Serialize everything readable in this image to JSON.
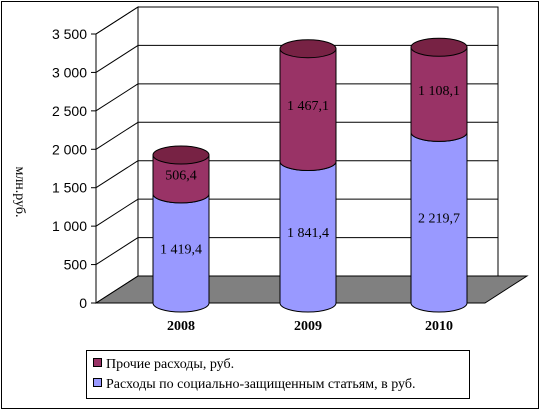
{
  "chart_data": {
    "type": "bar",
    "variant": "stacked-3d-cylinder",
    "categories": [
      "2008",
      "2009",
      "2010"
    ],
    "series": [
      {
        "name": "Расходы по социально-защищенным статьям, в руб.",
        "values": [
          1419.4,
          1841.4,
          2219.7
        ],
        "labels": [
          "1 419,4",
          "1 841,4",
          "2 219,7"
        ],
        "color": "#9999ff"
      },
      {
        "name": "Прочие расходы, руб.",
        "values": [
          506.4,
          1467.1,
          1108.1
        ],
        "labels": [
          "506,4",
          "1 467,1",
          "1 108,1"
        ],
        "color": "#993366"
      }
    ],
    "ylabel": "млн.руб.",
    "ylim": [
      0,
      3500
    ],
    "yticks": [
      {
        "value": 0,
        "label": "0"
      },
      {
        "value": 500,
        "label": "500"
      },
      {
        "value": 1000,
        "label": "1 000"
      },
      {
        "value": 1500,
        "label": "1 500"
      },
      {
        "value": 2000,
        "label": "2 000"
      },
      {
        "value": 2500,
        "label": "2 500"
      },
      {
        "value": 3000,
        "label": "3 000"
      },
      {
        "value": 3500,
        "label": "3 500"
      }
    ],
    "grid": true,
    "legend_position": "bottom"
  },
  "legend": {
    "items": [
      {
        "label": "Прочие расходы, руб.",
        "color": "#993366"
      },
      {
        "label": "Расходы по социально-защищенным статьям, в руб.",
        "color": "#9999ff"
      }
    ]
  }
}
